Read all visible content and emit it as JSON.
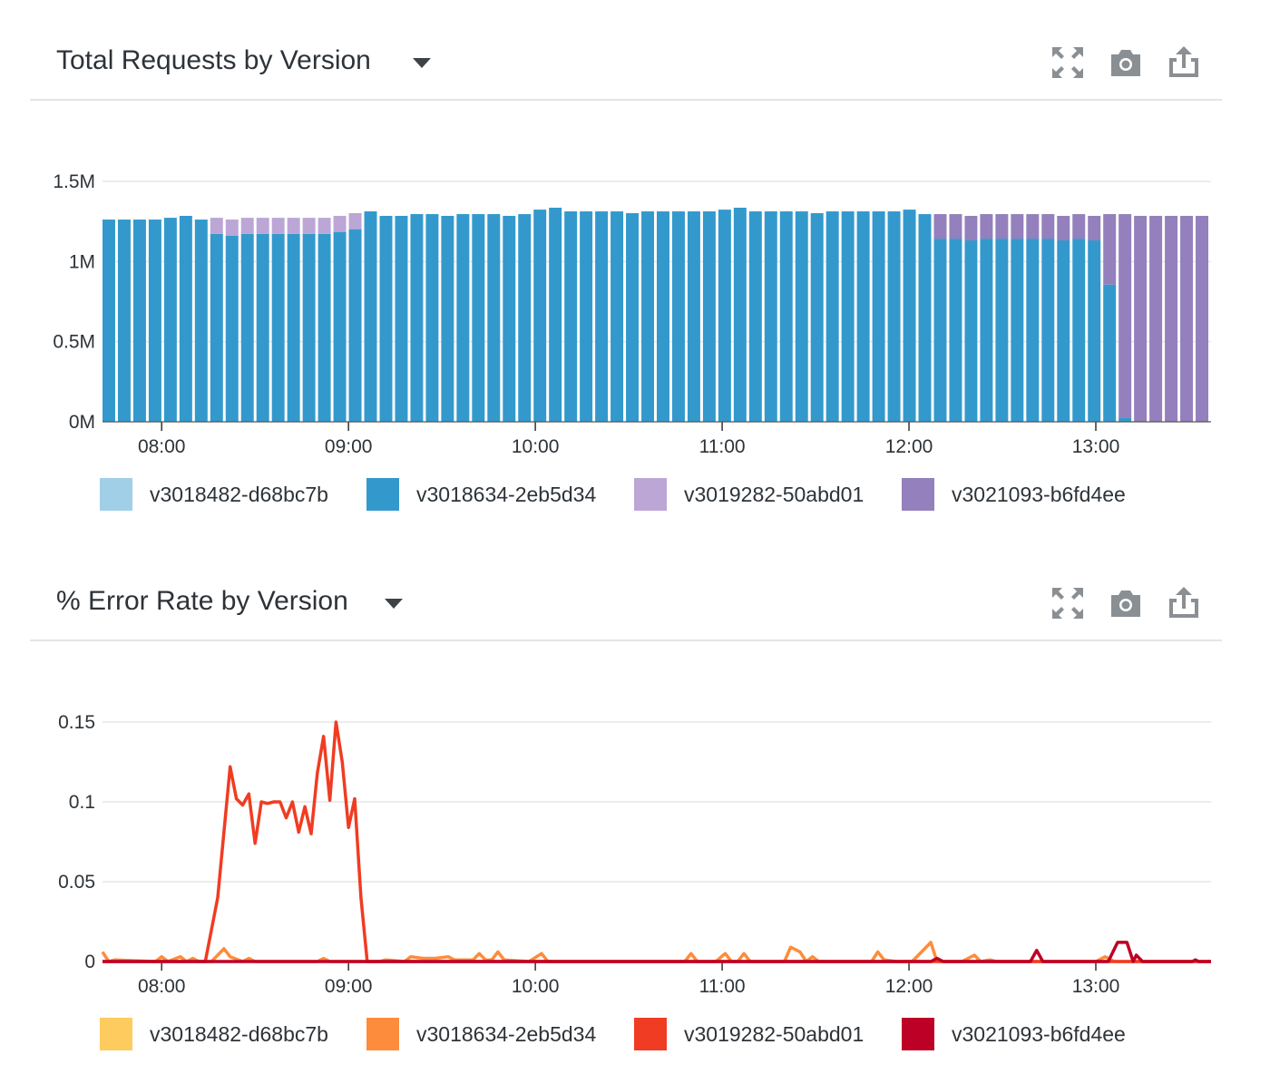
{
  "panels": [
    {
      "title": "Total Requests by Version",
      "icons": [
        "expand-icon",
        "camera-icon",
        "share-icon"
      ],
      "legend": [
        {
          "label": "v3018482-d68bc7b",
          "color": "#a1cfe8"
        },
        {
          "label": "v3018634-2eb5d34",
          "color": "#3399cd"
        },
        {
          "label": "v3019282-50abd01",
          "color": "#bca6d6"
        },
        {
          "label": "v3021093-b6fd4ee",
          "color": "#9380bc"
        }
      ]
    },
    {
      "title": "% Error Rate by Version",
      "icons": [
        "expand-icon",
        "camera-icon",
        "share-icon"
      ],
      "legend": [
        {
          "label": "v3018482-d68bc7b",
          "color": "#fecb5f"
        },
        {
          "label": "v3018634-2eb5d34",
          "color": "#fd8c3c"
        },
        {
          "label": "v3019282-50abd01",
          "color": "#f03c22"
        },
        {
          "label": "v3021093-b6fd4ee",
          "color": "#bd0026"
        }
      ]
    }
  ],
  "chart_data": [
    {
      "type": "bar",
      "stacked": true,
      "title": "Total Requests by Version",
      "bar_interval_minutes": 5,
      "first_bar": "07:41",
      "xlim": [
        "07:41",
        "13:37"
      ],
      "ylim": [
        0,
        1.5
      ],
      "y_unit": "M",
      "yticks": [
        {
          "v": 0,
          "label": "0M"
        },
        {
          "v": 0.5,
          "label": "0.5M"
        },
        {
          "v": 1,
          "label": "1M"
        },
        {
          "v": 1.5,
          "label": "1.5M"
        }
      ],
      "xticks": [
        "08:00",
        "09:00",
        "10:00",
        "11:00",
        "12:00",
        "13:00"
      ],
      "grid": true,
      "legend_position": "bottom",
      "series": [
        {
          "name": "v3018482-d68bc7b",
          "color": "#a1cfe8",
          "values": [
            0,
            0,
            0,
            0,
            0,
            0,
            0,
            0,
            0,
            0,
            0,
            0,
            0,
            0,
            0,
            0,
            0,
            0,
            0,
            0,
            0,
            0,
            0,
            0,
            0,
            0,
            0,
            0,
            0,
            0,
            0,
            0,
            0,
            0,
            0,
            0,
            0,
            0,
            0,
            0,
            0,
            0,
            0,
            0,
            0,
            0,
            0,
            0,
            0,
            0,
            0,
            0,
            0,
            0,
            0,
            0,
            0,
            0,
            0,
            0,
            0,
            0,
            0,
            0,
            0,
            0,
            0,
            0,
            0,
            0,
            0,
            0
          ]
        },
        {
          "name": "v3018634-2eb5d34",
          "color": "#3399cd",
          "values": [
            1.262,
            1.262,
            1.262,
            1.262,
            1.273,
            1.285,
            1.262,
            1.173,
            1.162,
            1.173,
            1.173,
            1.173,
            1.173,
            1.173,
            1.173,
            1.185,
            1.202,
            1.313,
            1.285,
            1.285,
            1.296,
            1.296,
            1.285,
            1.296,
            1.296,
            1.296,
            1.285,
            1.296,
            1.324,
            1.336,
            1.313,
            1.313,
            1.313,
            1.313,
            1.302,
            1.313,
            1.313,
            1.313,
            1.313,
            1.313,
            1.324,
            1.336,
            1.313,
            1.313,
            1.313,
            1.313,
            1.302,
            1.313,
            1.313,
            1.313,
            1.313,
            1.313,
            1.324,
            1.296,
            1.143,
            1.143,
            1.132,
            1.143,
            1.143,
            1.143,
            1.143,
            1.143,
            1.132,
            1.143,
            1.132,
            0.856,
            0.026,
            0,
            0,
            0,
            0,
            0
          ]
        },
        {
          "name": "v3019282-50abd01",
          "color": "#bca6d6",
          "values": [
            0,
            0,
            0,
            0,
            0,
            0,
            0,
            0.1,
            0.1,
            0.1,
            0.1,
            0.1,
            0.1,
            0.1,
            0.1,
            0.1,
            0.1,
            0,
            0,
            0,
            0,
            0,
            0,
            0,
            0,
            0,
            0,
            0,
            0,
            0,
            0,
            0,
            0,
            0,
            0,
            0,
            0,
            0,
            0,
            0,
            0,
            0,
            0,
            0,
            0,
            0,
            0,
            0,
            0,
            0,
            0,
            0,
            0,
            0,
            0,
            0,
            0,
            0,
            0,
            0,
            0,
            0,
            0,
            0,
            0,
            0,
            0,
            0,
            0,
            0,
            0,
            0
          ]
        },
        {
          "name": "v3021093-b6fd4ee",
          "color": "#9380bc",
          "values": [
            0,
            0,
            0,
            0,
            0,
            0,
            0,
            0,
            0,
            0,
            0,
            0,
            0,
            0,
            0,
            0,
            0,
            0,
            0,
            0,
            0,
            0,
            0,
            0,
            0,
            0,
            0,
            0,
            0,
            0,
            0,
            0,
            0,
            0,
            0,
            0,
            0,
            0,
            0,
            0,
            0,
            0,
            0,
            0,
            0,
            0,
            0,
            0,
            0,
            0,
            0,
            0,
            0,
            0,
            0.153,
            0.153,
            0.153,
            0.153,
            0.153,
            0.153,
            0.153,
            0.153,
            0.153,
            0.153,
            0.153,
            0.44,
            1.27,
            1.285,
            1.285,
            1.285,
            1.285,
            1.285
          ]
        }
      ]
    },
    {
      "type": "line",
      "title": "% Error Rate by Version",
      "xlim": [
        "07:41",
        "13:37"
      ],
      "ylim": [
        0,
        0.15
      ],
      "yticks": [
        {
          "v": 0,
          "label": "0"
        },
        {
          "v": 0.05,
          "label": "0.05"
        },
        {
          "v": 0.1,
          "label": "0.1"
        },
        {
          "v": 0.15,
          "label": "0.15"
        }
      ],
      "xticks": [
        "08:00",
        "09:00",
        "10:00",
        "11:00",
        "12:00",
        "13:00"
      ],
      "grid": true,
      "legend_position": "bottom",
      "series": [
        {
          "name": "v3018482-d68bc7b",
          "color": "#fecb5f",
          "points": []
        },
        {
          "name": "v3018634-2eb5d34",
          "color": "#fd8c3c",
          "points": [
            [
              "07:41",
              0.006
            ],
            [
              "07:43",
              0
            ],
            [
              "07:45",
              0.001
            ],
            [
              "07:58",
              0
            ],
            [
              "08:00",
              0.003
            ],
            [
              "08:02",
              0
            ],
            [
              "08:06",
              0.003
            ],
            [
              "08:08",
              0
            ],
            [
              "08:10",
              0.002
            ],
            [
              "08:12",
              0
            ],
            [
              "08:16",
              0
            ],
            [
              "08:20",
              0.008
            ],
            [
              "08:22",
              0.003
            ],
            [
              "08:26",
              0
            ],
            [
              "08:28",
              0.002
            ],
            [
              "08:30",
              0
            ],
            [
              "08:50",
              0
            ],
            [
              "08:52",
              0.002
            ],
            [
              "08:54",
              0
            ],
            [
              "09:10",
              0
            ],
            [
              "09:12",
              0.001
            ],
            [
              "09:18",
              0
            ],
            [
              "09:20",
              0.003
            ],
            [
              "09:24",
              0.002
            ],
            [
              "09:28",
              0.002
            ],
            [
              "09:32",
              0.003
            ],
            [
              "09:34",
              0.001
            ],
            [
              "09:40",
              0.001
            ],
            [
              "09:42",
              0.005
            ],
            [
              "09:44",
              0.001
            ],
            [
              "09:46",
              0.001
            ],
            [
              "09:48",
              0.006
            ],
            [
              "09:50",
              0.001
            ],
            [
              "09:58",
              0
            ],
            [
              "10:02",
              0.005
            ],
            [
              "10:04",
              0
            ],
            [
              "10:48",
              0
            ],
            [
              "10:50",
              0.005
            ],
            [
              "10:52",
              0
            ],
            [
              "10:58",
              0
            ],
            [
              "11:01",
              0.005
            ],
            [
              "11:03",
              0
            ],
            [
              "11:05",
              0
            ],
            [
              "11:07",
              0.005
            ],
            [
              "11:09",
              0
            ],
            [
              "11:20",
              0
            ],
            [
              "11:22",
              0.009
            ],
            [
              "11:25",
              0.006
            ],
            [
              "11:27",
              0
            ],
            [
              "11:29",
              0.003
            ],
            [
              "11:31",
              0
            ],
            [
              "11:48",
              0
            ],
            [
              "11:50",
              0.006
            ],
            [
              "11:52",
              0.001
            ],
            [
              "11:56",
              0
            ],
            [
              "12:01",
              0
            ],
            [
              "12:07",
              0.012
            ],
            [
              "12:09",
              0
            ],
            [
              "12:17",
              0
            ],
            [
              "12:21",
              0.004
            ],
            [
              "12:23",
              0
            ],
            [
              "12:26",
              0.001
            ],
            [
              "12:28",
              0
            ],
            [
              "13:00",
              0
            ],
            [
              "13:03",
              0.003
            ],
            [
              "13:06",
              0
            ],
            [
              "13:37",
              0
            ]
          ]
        },
        {
          "name": "v3019282-50abd01",
          "color": "#f03c22",
          "points": [
            [
              "07:41",
              0
            ],
            [
              "08:14",
              0
            ],
            [
              "08:18",
              0.04
            ],
            [
              "08:22",
              0.122
            ],
            [
              "08:24",
              0.102
            ],
            [
              "08:26",
              0.098
            ],
            [
              "08:28",
              0.105
            ],
            [
              "08:30",
              0.074
            ],
            [
              "08:32",
              0.1
            ],
            [
              "08:34",
              0.099
            ],
            [
              "08:36",
              0.1
            ],
            [
              "08:38",
              0.1
            ],
            [
              "08:40",
              0.09
            ],
            [
              "08:42",
              0.1
            ],
            [
              "08:44",
              0.081
            ],
            [
              "08:46",
              0.097
            ],
            [
              "08:48",
              0.08
            ],
            [
              "08:50",
              0.118
            ],
            [
              "08:52",
              0.141
            ],
            [
              "08:54",
              0.101
            ],
            [
              "08:56",
              0.15
            ],
            [
              "08:58",
              0.125
            ],
            [
              "09:00",
              0.084
            ],
            [
              "09:02",
              0.102
            ],
            [
              "09:04",
              0.04
            ],
            [
              "09:06",
              0
            ],
            [
              "13:37",
              0
            ]
          ]
        },
        {
          "name": "v3021093-b6fd4ee",
          "color": "#bd0026",
          "points": [
            [
              "07:41",
              0
            ],
            [
              "12:07",
              0
            ],
            [
              "12:09",
              0.002
            ],
            [
              "12:11",
              0
            ],
            [
              "12:39",
              0
            ],
            [
              "12:41",
              0.007
            ],
            [
              "12:43",
              0
            ],
            [
              "13:04",
              0
            ],
            [
              "13:07",
              0.012
            ],
            [
              "13:10",
              0.012
            ],
            [
              "13:12",
              0
            ],
            [
              "13:13",
              0.004
            ],
            [
              "13:15",
              0
            ],
            [
              "13:31",
              0
            ],
            [
              "13:32",
              0.001
            ],
            [
              "13:33",
              0
            ],
            [
              "13:37",
              0
            ]
          ]
        }
      ]
    }
  ]
}
